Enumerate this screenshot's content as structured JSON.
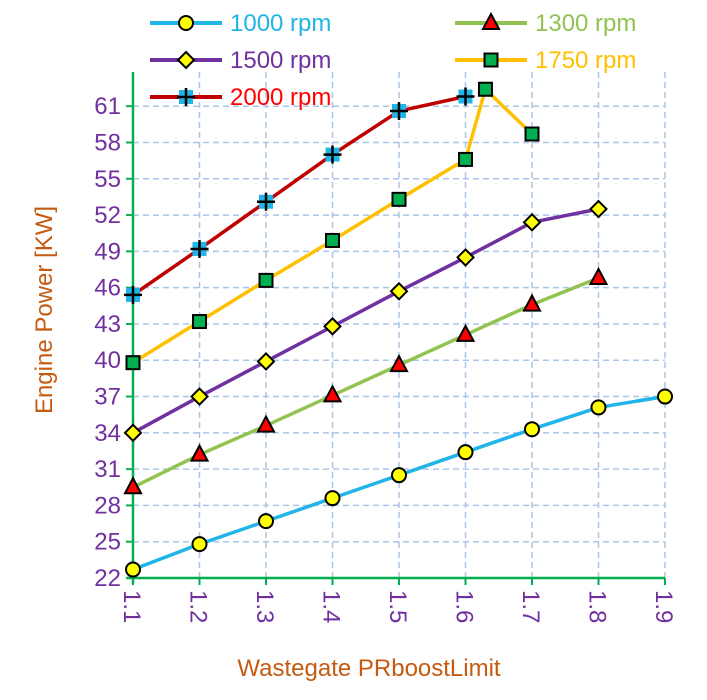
{
  "chart_data": {
    "type": "line",
    "xlabel": "Wastegate PRboostLimit",
    "ylabel": "Engine Power [KW]",
    "xlim": [
      1.1,
      1.9
    ],
    "ylim": [
      22,
      63
    ],
    "x_ticks": [
      "1.1",
      "1.2",
      "1.3",
      "1.4",
      "1.5",
      "1.6",
      "1.7",
      "1.8",
      "1.9"
    ],
    "y_ticks": [
      "22",
      "25",
      "28",
      "31",
      "34",
      "37",
      "40",
      "43",
      "46",
      "49",
      "52",
      "55",
      "58",
      "61"
    ],
    "grid": true,
    "legend_position": "top",
    "series": [
      {
        "name": "1000 rpm",
        "color": "#1fb5e8",
        "marker": "circle",
        "marker_fill": "#ffff00",
        "label_color": "#1fb5e8",
        "x": [
          1.1,
          1.2,
          1.3,
          1.4,
          1.5,
          1.6,
          1.7,
          1.8,
          1.9
        ],
        "values": [
          22.7,
          24.8,
          26.7,
          28.6,
          30.5,
          32.4,
          34.3,
          36.1,
          37.0
        ]
      },
      {
        "name": "1300 rpm",
        "color": "#92c350",
        "marker": "triangle",
        "marker_fill": "#ff0000",
        "label_color": "#92c350",
        "x": [
          1.1,
          1.2,
          1.3,
          1.4,
          1.5,
          1.6,
          1.7,
          1.8
        ],
        "values": [
          29.5,
          32.2,
          34.6,
          37.1,
          39.6,
          42.1,
          44.6,
          46.8
        ]
      },
      {
        "name": "1500 rpm",
        "color": "#7030a0",
        "marker": "diamond",
        "marker_fill": "#ffff00",
        "label_color": "#7030a0",
        "x": [
          1.1,
          1.2,
          1.3,
          1.4,
          1.5,
          1.6,
          1.7,
          1.8
        ],
        "values": [
          34.0,
          37.0,
          39.9,
          42.8,
          45.7,
          48.5,
          51.4,
          52.5
        ]
      },
      {
        "name": "1750 rpm",
        "color": "#ffc000",
        "marker": "square",
        "marker_fill": "#00b050",
        "label_color": "#ffc000",
        "x": [
          1.1,
          1.2,
          1.3,
          1.4,
          1.5,
          1.6,
          1.63,
          1.7
        ],
        "values": [
          39.8,
          43.2,
          46.6,
          49.9,
          53.3,
          56.6,
          62.4,
          58.7
        ]
      },
      {
        "name": "2000 rpm",
        "color": "#c00000",
        "marker": "plus",
        "marker_fill": "#1fb5e8",
        "label_color": "#ff0000",
        "x": [
          1.1,
          1.2,
          1.3,
          1.4,
          1.5,
          1.6
        ],
        "values": [
          45.4,
          49.2,
          53.1,
          57.0,
          60.6,
          61.8
        ]
      }
    ]
  }
}
